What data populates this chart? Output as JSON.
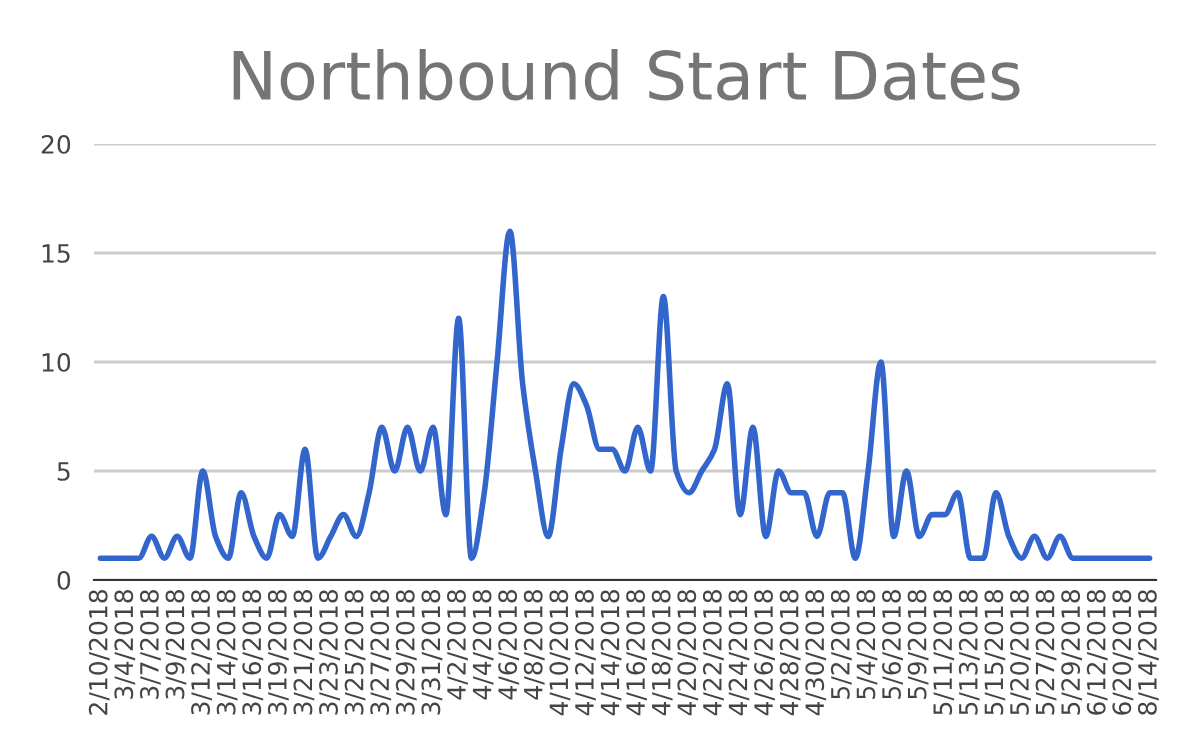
{
  "chart_data": {
    "type": "line",
    "title": "Northbound Start Dates",
    "categories": [
      "2/10/2018",
      null,
      "3/4/2018",
      null,
      "3/7/2018",
      null,
      "3/9/2018",
      null,
      "3/12/2018",
      null,
      "3/14/2018",
      null,
      "3/16/2018",
      null,
      "3/19/2018",
      null,
      "3/21/2018",
      null,
      "3/23/2018",
      null,
      "3/25/2018",
      null,
      "3/27/2018",
      null,
      "3/29/2018",
      null,
      "3/31/2018",
      null,
      "4/2/2018",
      null,
      "4/4/2018",
      null,
      "4/6/2018",
      null,
      "4/8/2018",
      null,
      "4/10/2018",
      null,
      "4/12/2018",
      null,
      "4/14/2018",
      null,
      "4/16/2018",
      null,
      "4/18/2018",
      null,
      "4/20/2018",
      null,
      "4/22/2018",
      null,
      "4/24/2018",
      null,
      "4/26/2018",
      null,
      "4/28/2018",
      null,
      "4/30/2018",
      null,
      "5/2/2018",
      null,
      "5/4/2018",
      null,
      "5/6/2018",
      null,
      "5/9/2018",
      null,
      "5/11/2018",
      null,
      "5/13/2018",
      null,
      "5/15/2018",
      null,
      "5/20/2018",
      null,
      "5/27/2018",
      null,
      "5/29/2018",
      null,
      "6/12/2018",
      null,
      "6/20/2018",
      null,
      "8/14/2018"
    ],
    "series": [
      {
        "color": "#3366cc",
        "values": [
          1,
          1,
          1,
          1,
          2,
          1,
          2,
          1,
          5,
          2,
          1,
          4,
          2,
          1,
          3,
          2,
          6,
          1,
          2,
          3,
          2,
          4,
          7,
          5,
          7,
          5,
          7,
          3,
          12,
          1,
          4,
          10,
          16,
          9,
          5,
          2,
          6,
          9,
          8,
          6,
          6,
          5,
          7,
          5,
          13,
          5,
          4,
          5,
          6,
          9,
          3,
          7,
          2,
          5,
          4,
          4,
          2,
          4,
          4,
          1,
          5,
          10,
          2,
          5,
          2,
          3,
          3,
          4,
          1,
          1,
          4,
          2,
          1,
          2,
          1,
          2,
          1,
          1,
          1,
          1,
          1,
          1,
          1
        ]
      }
    ],
    "ylim": [
      0,
      20
    ],
    "yticks": [
      0,
      5,
      10,
      15,
      20
    ],
    "grid": "y",
    "legend": false,
    "line_style": "solid",
    "marker": "none"
  }
}
